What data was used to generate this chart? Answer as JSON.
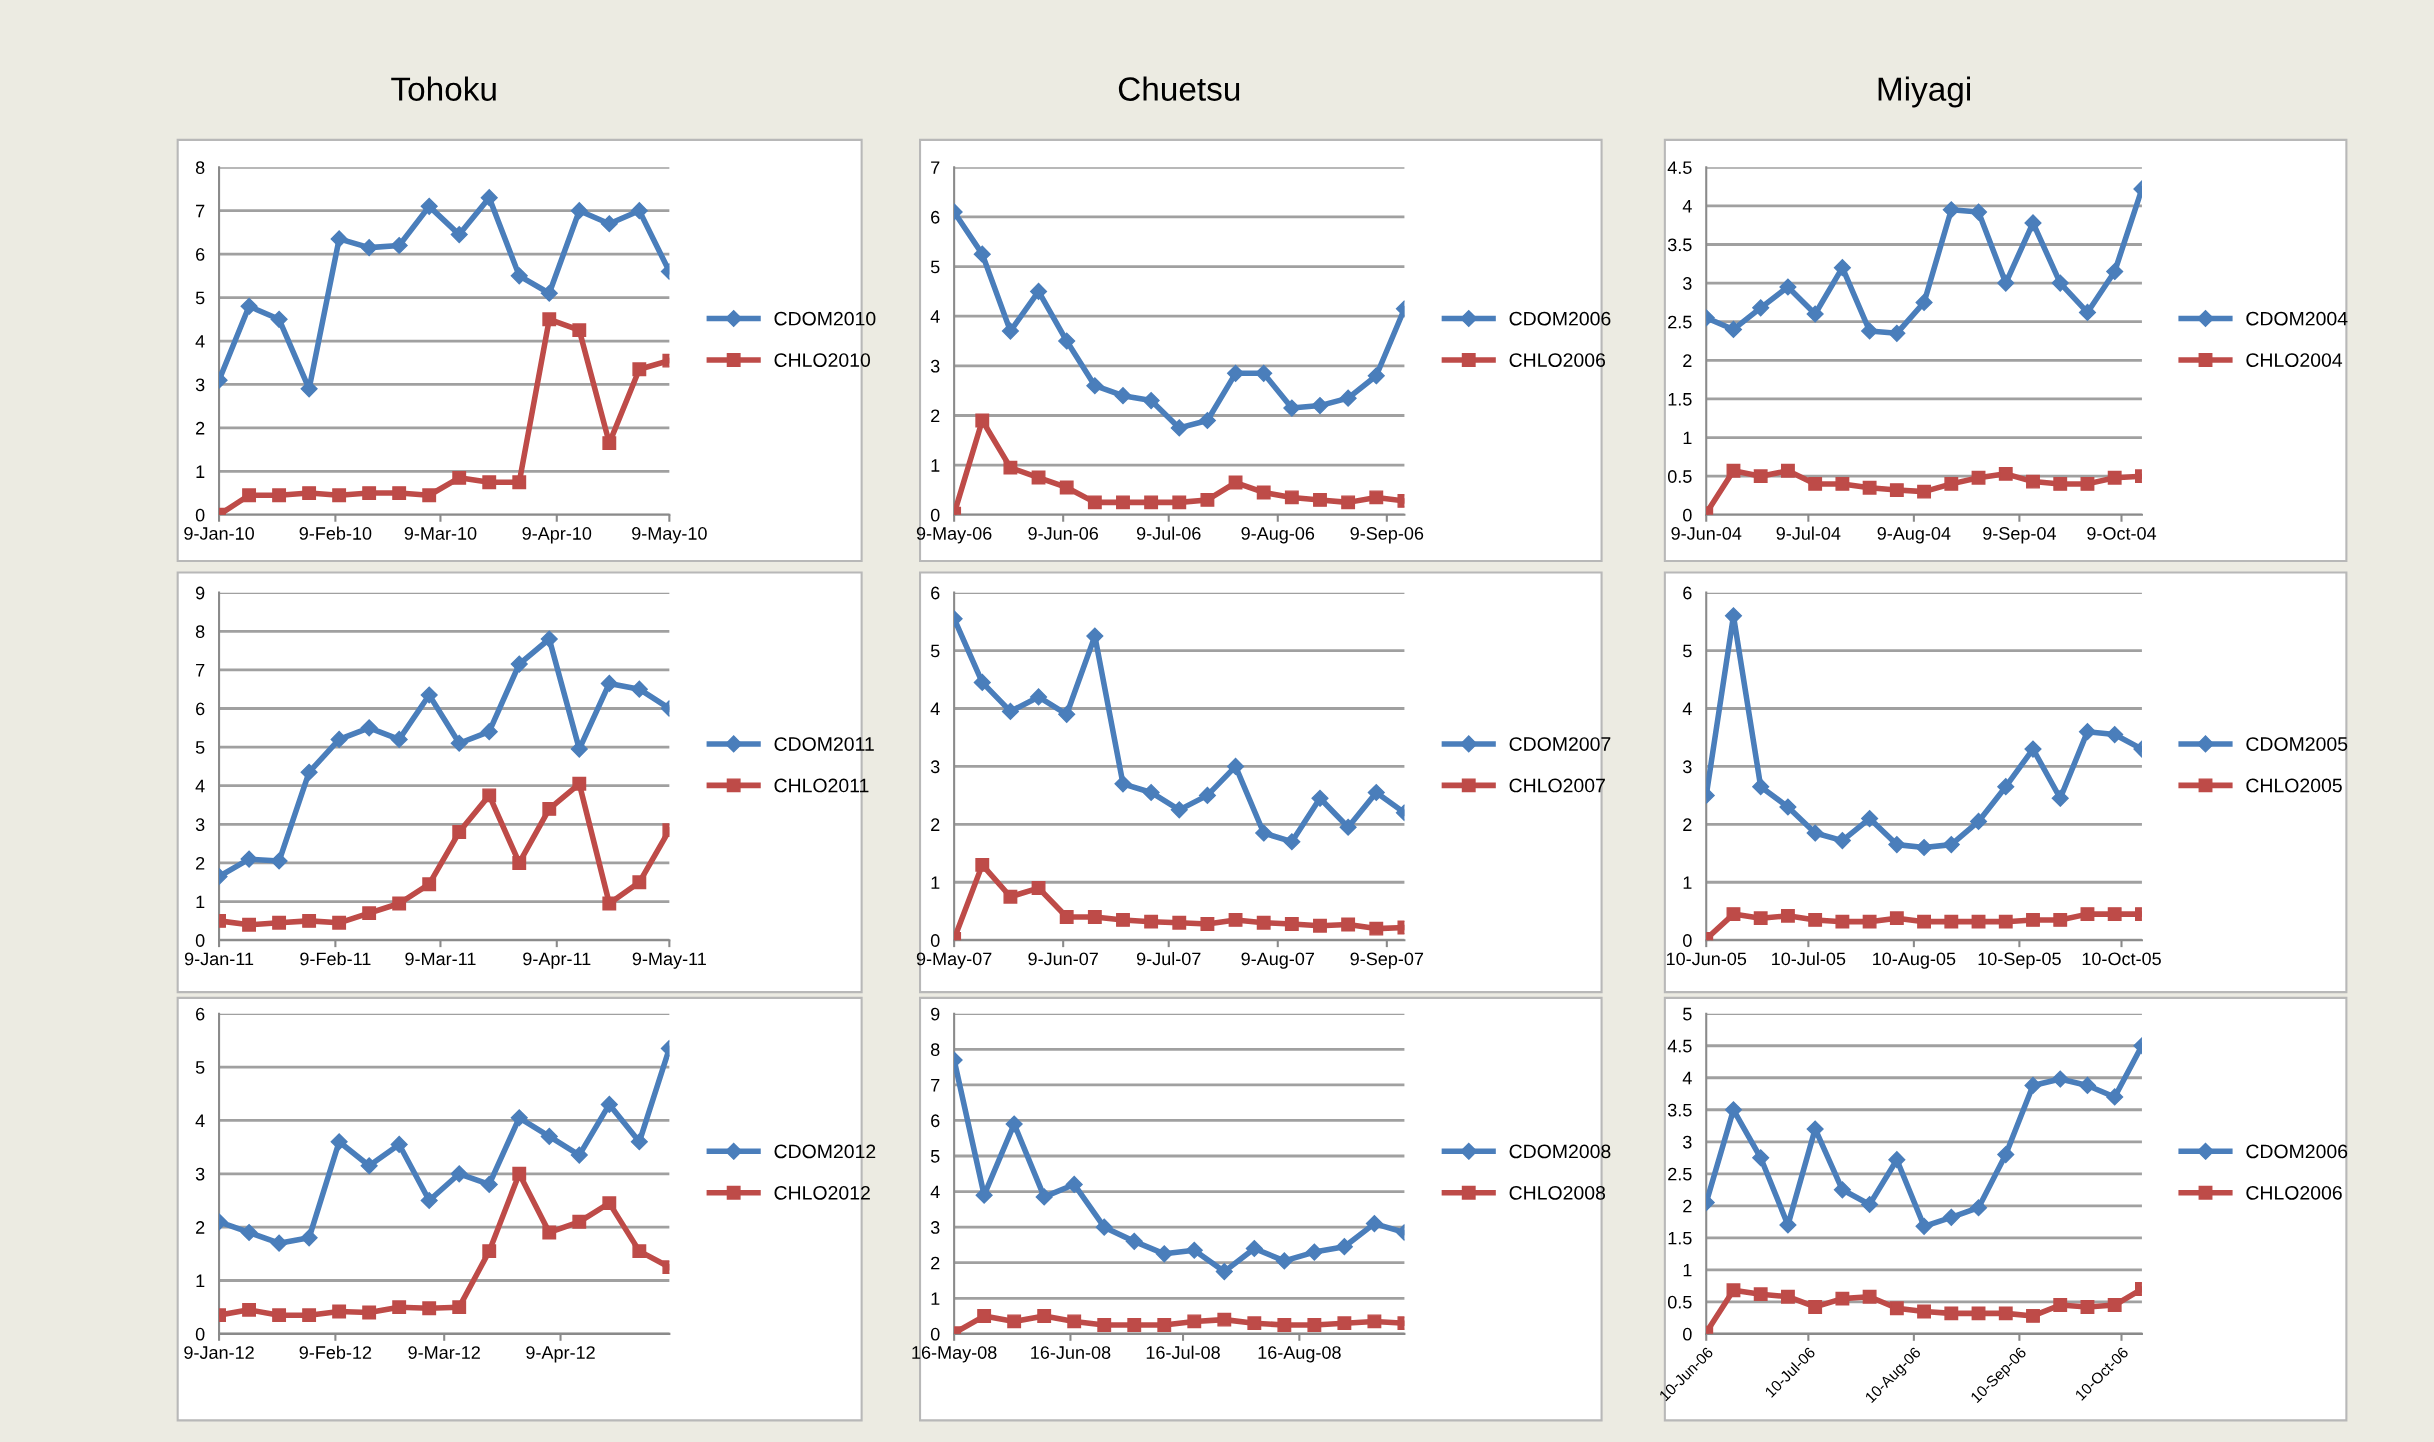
{
  "chart_data": [
    {
      "type": "line",
      "title": "Tohoku",
      "x": [
        "2010-01-09",
        "2010-01-17",
        "2010-01-25",
        "2010-02-02",
        "2010-02-10",
        "2010-02-18",
        "2010-02-26",
        "2010-03-06",
        "2010-03-14",
        "2010-03-22",
        "2010-03-30",
        "2010-04-07",
        "2010-04-15",
        "2010-04-23",
        "2010-05-01",
        "2010-05-09"
      ],
      "series": [
        {
          "name": "CDOM2010",
          "color": "#4a7ebb",
          "marker": "diamond",
          "values": [
            3.1,
            4.8,
            4.5,
            2.9,
            6.35,
            6.15,
            6.2,
            7.1,
            6.45,
            7.3,
            5.5,
            5.1,
            7.0,
            6.7,
            7.0,
            5.6
          ]
        },
        {
          "name": "CHLO2010",
          "color": "#be4b48",
          "marker": "square",
          "values": [
            0.0,
            0.45,
            0.45,
            0.5,
            0.45,
            0.5,
            0.5,
            0.45,
            0.85,
            0.75,
            0.75,
            4.5,
            4.25,
            1.65,
            3.35,
            3.55
          ]
        }
      ],
      "xlim": [
        "2010-01-09",
        "2010-05-09"
      ],
      "xticks": [
        {
          "value": "2010-01-09",
          "label": "9-Jan-10"
        },
        {
          "value": "2010-02-09",
          "label": "9-Feb-10"
        },
        {
          "value": "2010-03-09",
          "label": "9-Mar-10"
        },
        {
          "value": "2010-04-09",
          "label": "9-Apr-10"
        },
        {
          "value": "2010-05-09",
          "label": "9-May-10"
        }
      ],
      "ylim": [
        0,
        8
      ],
      "yticks": [
        0,
        1,
        2,
        3,
        4,
        5,
        6,
        7,
        8
      ],
      "grid": "y",
      "legend": "right",
      "line_style": "solid"
    },
    {
      "type": "line",
      "title": "Chuetsu",
      "x": [
        "2006-05-09",
        "2006-05-17",
        "2006-05-25",
        "2006-06-02",
        "2006-06-10",
        "2006-06-18",
        "2006-06-26",
        "2006-07-04",
        "2006-07-12",
        "2006-07-20",
        "2006-07-28",
        "2006-08-05",
        "2006-08-13",
        "2006-08-21",
        "2006-08-29",
        "2006-09-06",
        "2006-09-14"
      ],
      "series": [
        {
          "name": "CDOM2006",
          "color": "#4a7ebb",
          "marker": "diamond",
          "values": [
            6.1,
            5.25,
            3.7,
            4.5,
            3.5,
            2.6,
            2.4,
            2.3,
            1.75,
            1.9,
            2.85,
            2.85,
            2.15,
            2.2,
            2.35,
            2.8,
            4.15
          ]
        },
        {
          "name": "CHLO2006",
          "color": "#be4b48",
          "marker": "square",
          "values": [
            0.02,
            1.9,
            0.95,
            0.75,
            0.55,
            0.25,
            0.25,
            0.25,
            0.25,
            0.3,
            0.65,
            0.45,
            0.35,
            0.3,
            0.25,
            0.35,
            0.28
          ]
        }
      ],
      "xlim": [
        "2006-05-09",
        "2006-09-14"
      ],
      "xticks": [
        {
          "value": "2006-05-09",
          "label": "9-May-06"
        },
        {
          "value": "2006-06-09",
          "label": "9-Jun-06"
        },
        {
          "value": "2006-07-09",
          "label": "9-Jul-06"
        },
        {
          "value": "2006-08-09",
          "label": "9-Aug-06"
        },
        {
          "value": "2006-09-09",
          "label": "9-Sep-06"
        }
      ],
      "ylim": [
        0,
        7
      ],
      "yticks": [
        0,
        1,
        2,
        3,
        4,
        5,
        6,
        7
      ],
      "grid": "y",
      "legend": "right",
      "line_style": "solid"
    },
    {
      "type": "line",
      "title": "Miyagi",
      "x": [
        "2004-06-09",
        "2004-06-17",
        "2004-06-25",
        "2004-07-03",
        "2004-07-11",
        "2004-07-19",
        "2004-07-27",
        "2004-08-04",
        "2004-08-12",
        "2004-08-20",
        "2004-08-28",
        "2004-09-05",
        "2004-09-13",
        "2004-09-21",
        "2004-09-29",
        "2004-10-07",
        "2004-10-15"
      ],
      "series": [
        {
          "name": "CDOM2004",
          "color": "#4a7ebb",
          "marker": "diamond",
          "values": [
            2.55,
            2.4,
            2.68,
            2.95,
            2.6,
            3.2,
            2.38,
            2.35,
            2.75,
            3.95,
            3.92,
            3.0,
            3.78,
            3.0,
            2.62,
            3.15,
            4.22
          ]
        },
        {
          "name": "CHLO2004",
          "color": "#be4b48",
          "marker": "square",
          "values": [
            0.02,
            0.57,
            0.5,
            0.57,
            0.4,
            0.4,
            0.35,
            0.32,
            0.3,
            0.4,
            0.48,
            0.53,
            0.43,
            0.4,
            0.4,
            0.48,
            0.5
          ]
        }
      ],
      "xlim": [
        "2004-06-09",
        "2004-10-15"
      ],
      "xticks": [
        {
          "value": "2004-06-09",
          "label": "9-Jun-04"
        },
        {
          "value": "2004-07-09",
          "label": "9-Jul-04"
        },
        {
          "value": "2004-08-09",
          "label": "9-Aug-04"
        },
        {
          "value": "2004-09-09",
          "label": "9-Sep-04"
        },
        {
          "value": "2004-10-09",
          "label": "9-Oct-04"
        }
      ],
      "ylim": [
        0,
        4.5
      ],
      "yticks": [
        0,
        0.5,
        1,
        1.5,
        2,
        2.5,
        3,
        3.5,
        4,
        4.5
      ],
      "grid": "y",
      "legend": "right",
      "line_style": "solid"
    },
    {
      "type": "line",
      "x": [
        "2011-01-09",
        "2011-01-17",
        "2011-01-25",
        "2011-02-02",
        "2011-02-10",
        "2011-02-18",
        "2011-02-26",
        "2011-03-06",
        "2011-03-14",
        "2011-03-22",
        "2011-03-30",
        "2011-04-07",
        "2011-04-15",
        "2011-04-23",
        "2011-05-01",
        "2011-05-09"
      ],
      "series": [
        {
          "name": "CDOM2011",
          "color": "#4a7ebb",
          "marker": "diamond",
          "values": [
            1.65,
            2.1,
            2.05,
            4.35,
            5.2,
            5.5,
            5.2,
            6.35,
            5.1,
            5.4,
            7.15,
            7.8,
            4.95,
            6.65,
            6.5,
            6.0
          ]
        },
        {
          "name": "CHLO2011",
          "color": "#be4b48",
          "marker": "square",
          "values": [
            0.5,
            0.4,
            0.45,
            0.5,
            0.45,
            0.7,
            0.95,
            1.45,
            2.8,
            3.75,
            2.0,
            3.4,
            4.05,
            0.95,
            1.5,
            2.85
          ]
        }
      ],
      "xlim": [
        "2011-01-09",
        "2011-05-09"
      ],
      "xticks": [
        {
          "value": "2011-01-09",
          "label": "9-Jan-11"
        },
        {
          "value": "2011-02-09",
          "label": "9-Feb-11"
        },
        {
          "value": "2011-03-09",
          "label": "9-Mar-11"
        },
        {
          "value": "2011-04-09",
          "label": "9-Apr-11"
        },
        {
          "value": "2011-05-09",
          "label": "9-May-11"
        }
      ],
      "ylim": [
        0,
        9
      ],
      "yticks": [
        0,
        1,
        2,
        3,
        4,
        5,
        6,
        7,
        8,
        9
      ],
      "grid": "y",
      "legend": "right",
      "line_style": "solid"
    },
    {
      "type": "line",
      "x": [
        "2007-05-09",
        "2007-05-17",
        "2007-05-25",
        "2007-06-02",
        "2007-06-10",
        "2007-06-18",
        "2007-06-26",
        "2007-07-04",
        "2007-07-12",
        "2007-07-20",
        "2007-07-28",
        "2007-08-05",
        "2007-08-13",
        "2007-08-21",
        "2007-08-29",
        "2007-09-06",
        "2007-09-14"
      ],
      "series": [
        {
          "name": "CDOM2007",
          "color": "#4a7ebb",
          "marker": "diamond",
          "values": [
            5.55,
            4.45,
            3.95,
            4.2,
            3.9,
            5.25,
            2.7,
            2.55,
            2.25,
            2.5,
            3.0,
            1.85,
            1.7,
            2.45,
            1.95,
            2.55,
            2.2
          ]
        },
        {
          "name": "CHLO2007",
          "color": "#be4b48",
          "marker": "square",
          "values": [
            0.02,
            1.3,
            0.75,
            0.9,
            0.4,
            0.4,
            0.35,
            0.32,
            0.3,
            0.28,
            0.35,
            0.3,
            0.28,
            0.25,
            0.27,
            0.2,
            0.22
          ]
        }
      ],
      "xlim": [
        "2007-05-09",
        "2007-09-14"
      ],
      "xticks": [
        {
          "value": "2007-05-09",
          "label": "9-May-07"
        },
        {
          "value": "2007-06-09",
          "label": "9-Jun-07"
        },
        {
          "value": "2007-07-09",
          "label": "9-Jul-07"
        },
        {
          "value": "2007-08-09",
          "label": "9-Aug-07"
        },
        {
          "value": "2007-09-09",
          "label": "9-Sep-07"
        }
      ],
      "ylim": [
        0,
        6
      ],
      "yticks": [
        0,
        1,
        2,
        3,
        4,
        5,
        6
      ],
      "grid": "y",
      "legend": "right",
      "line_style": "solid"
    },
    {
      "type": "line",
      "x": [
        "2005-06-10",
        "2005-06-18",
        "2005-06-26",
        "2005-07-04",
        "2005-07-12",
        "2005-07-20",
        "2005-07-28",
        "2005-08-05",
        "2005-08-13",
        "2005-08-21",
        "2005-08-29",
        "2005-09-06",
        "2005-09-14",
        "2005-09-22",
        "2005-09-30",
        "2005-10-08",
        "2005-10-16"
      ],
      "series": [
        {
          "name": "CDOM2005",
          "color": "#4a7ebb",
          "marker": "diamond",
          "values": [
            2.5,
            5.6,
            2.65,
            2.3,
            1.85,
            1.72,
            2.1,
            1.65,
            1.6,
            1.65,
            2.05,
            2.65,
            3.3,
            2.45,
            3.6,
            3.55,
            3.3
          ]
        },
        {
          "name": "CHLO2005",
          "color": "#be4b48",
          "marker": "square",
          "values": [
            0.02,
            0.45,
            0.38,
            0.42,
            0.35,
            0.32,
            0.32,
            0.38,
            0.32,
            0.32,
            0.32,
            0.32,
            0.35,
            0.35,
            0.45,
            0.45,
            0.45
          ]
        }
      ],
      "xlim": [
        "2005-06-10",
        "2005-10-16"
      ],
      "xticks": [
        {
          "value": "2005-06-10",
          "label": "10-Jun-05"
        },
        {
          "value": "2005-07-10",
          "label": "10-Jul-05"
        },
        {
          "value": "2005-08-10",
          "label": "10-Aug-05"
        },
        {
          "value": "2005-09-10",
          "label": "10-Sep-05"
        },
        {
          "value": "2005-10-10",
          "label": "10-Oct-05"
        }
      ],
      "ylim": [
        0,
        6
      ],
      "yticks": [
        0,
        1,
        2,
        3,
        4,
        5,
        6
      ],
      "grid": "y",
      "legend": "right",
      "line_style": "solid"
    },
    {
      "type": "line",
      "x": [
        "2012-01-09",
        "2012-01-17",
        "2012-01-25",
        "2012-02-02",
        "2012-02-10",
        "2012-02-18",
        "2012-02-26",
        "2012-03-05",
        "2012-03-13",
        "2012-03-21",
        "2012-03-29",
        "2012-04-06",
        "2012-04-14",
        "2012-04-22",
        "2012-04-30",
        "2012-05-08"
      ],
      "series": [
        {
          "name": "CDOM2012",
          "color": "#4a7ebb",
          "marker": "diamond",
          "values": [
            2.1,
            1.9,
            1.7,
            1.8,
            3.6,
            3.15,
            3.55,
            2.5,
            3.0,
            2.8,
            4.05,
            3.7,
            3.35,
            4.3,
            3.6,
            5.35
          ]
        },
        {
          "name": "CHLO2012",
          "color": "#be4b48",
          "marker": "square",
          "values": [
            0.35,
            0.45,
            0.35,
            0.35,
            0.42,
            0.4,
            0.5,
            0.48,
            0.5,
            1.55,
            3.0,
            1.9,
            2.1,
            2.45,
            1.55,
            1.25
          ]
        }
      ],
      "xlim": [
        "2012-01-09",
        "2012-05-08"
      ],
      "xticks": [
        {
          "value": "2012-01-09",
          "label": "9-Jan-12"
        },
        {
          "value": "2012-02-09",
          "label": "9-Feb-12"
        },
        {
          "value": "2012-03-09",
          "label": "9-Mar-12"
        },
        {
          "value": "2012-04-09",
          "label": "9-Apr-12"
        }
      ],
      "ylim": [
        0,
        6
      ],
      "yticks": [
        0,
        1,
        2,
        3,
        4,
        5,
        6
      ],
      "grid": "y",
      "legend": "right",
      "line_style": "solid"
    },
    {
      "type": "line",
      "x": [
        "2008-05-16",
        "2008-05-24",
        "2008-06-01",
        "2008-06-09",
        "2008-06-17",
        "2008-06-25",
        "2008-07-03",
        "2008-07-11",
        "2008-07-19",
        "2008-07-27",
        "2008-08-04",
        "2008-08-12",
        "2008-08-20",
        "2008-08-28",
        "2008-09-05",
        "2008-09-13"
      ],
      "series": [
        {
          "name": "CDOM2008",
          "color": "#4a7ebb",
          "marker": "diamond",
          "values": [
            7.7,
            3.9,
            5.9,
            3.85,
            4.2,
            3.0,
            2.6,
            2.25,
            2.35,
            1.75,
            2.4,
            2.05,
            2.3,
            2.45,
            3.1,
            2.85
          ]
        },
        {
          "name": "CHLO2008",
          "color": "#be4b48",
          "marker": "square",
          "values": [
            0.02,
            0.5,
            0.35,
            0.5,
            0.35,
            0.25,
            0.25,
            0.25,
            0.35,
            0.4,
            0.3,
            0.25,
            0.25,
            0.3,
            0.35,
            0.3
          ]
        }
      ],
      "xlim": [
        "2008-05-16",
        "2008-09-13"
      ],
      "xticks": [
        {
          "value": "2008-05-16",
          "label": "16-May-08"
        },
        {
          "value": "2008-06-16",
          "label": "16-Jun-08"
        },
        {
          "value": "2008-07-16",
          "label": "16-Jul-08"
        },
        {
          "value": "2008-08-16",
          "label": "16-Aug-08"
        }
      ],
      "ylim": [
        0,
        9
      ],
      "yticks": [
        0,
        1,
        2,
        3,
        4,
        5,
        6,
        7,
        8,
        9
      ],
      "grid": "y",
      "legend": "right",
      "line_style": "solid"
    },
    {
      "type": "line",
      "x": [
        "2006-06-10",
        "2006-06-18",
        "2006-06-26",
        "2006-07-04",
        "2006-07-12",
        "2006-07-20",
        "2006-07-28",
        "2006-08-05",
        "2006-08-13",
        "2006-08-21",
        "2006-08-29",
        "2006-09-06",
        "2006-09-14",
        "2006-09-22",
        "2006-09-30",
        "2006-10-08",
        "2006-10-16"
      ],
      "series": [
        {
          "name": "CDOM2006",
          "color": "#4a7ebb",
          "marker": "diamond",
          "values": [
            2.05,
            3.5,
            2.75,
            1.7,
            3.2,
            2.25,
            2.02,
            2.72,
            1.68,
            1.82,
            1.97,
            2.8,
            3.88,
            3.98,
            3.88,
            3.7,
            4.5
          ]
        },
        {
          "name": "CHLO2006",
          "color": "#be4b48",
          "marker": "square",
          "values": [
            0.02,
            0.68,
            0.62,
            0.58,
            0.42,
            0.55,
            0.58,
            0.4,
            0.35,
            0.32,
            0.32,
            0.32,
            0.28,
            0.45,
            0.42,
            0.45,
            0.7
          ]
        }
      ],
      "xlim": [
        "2006-06-10",
        "2006-10-16"
      ],
      "xticks": [
        {
          "value": "2006-06-10",
          "label": "10-Jun-06"
        },
        {
          "value": "2006-07-10",
          "label": "10-Jul-06"
        },
        {
          "value": "2006-08-10",
          "label": "10-Aug-06"
        },
        {
          "value": "2006-09-10",
          "label": "10-Sep-06"
        },
        {
          "value": "2006-10-10",
          "label": "10-Oct-06"
        }
      ],
      "ylim": [
        0,
        5
      ],
      "yticks": [
        0,
        0.5,
        1,
        1.5,
        2,
        2.5,
        3,
        3.5,
        4,
        4.5,
        5
      ],
      "grid": "y",
      "legend": "right",
      "line_style": "solid"
    }
  ]
}
